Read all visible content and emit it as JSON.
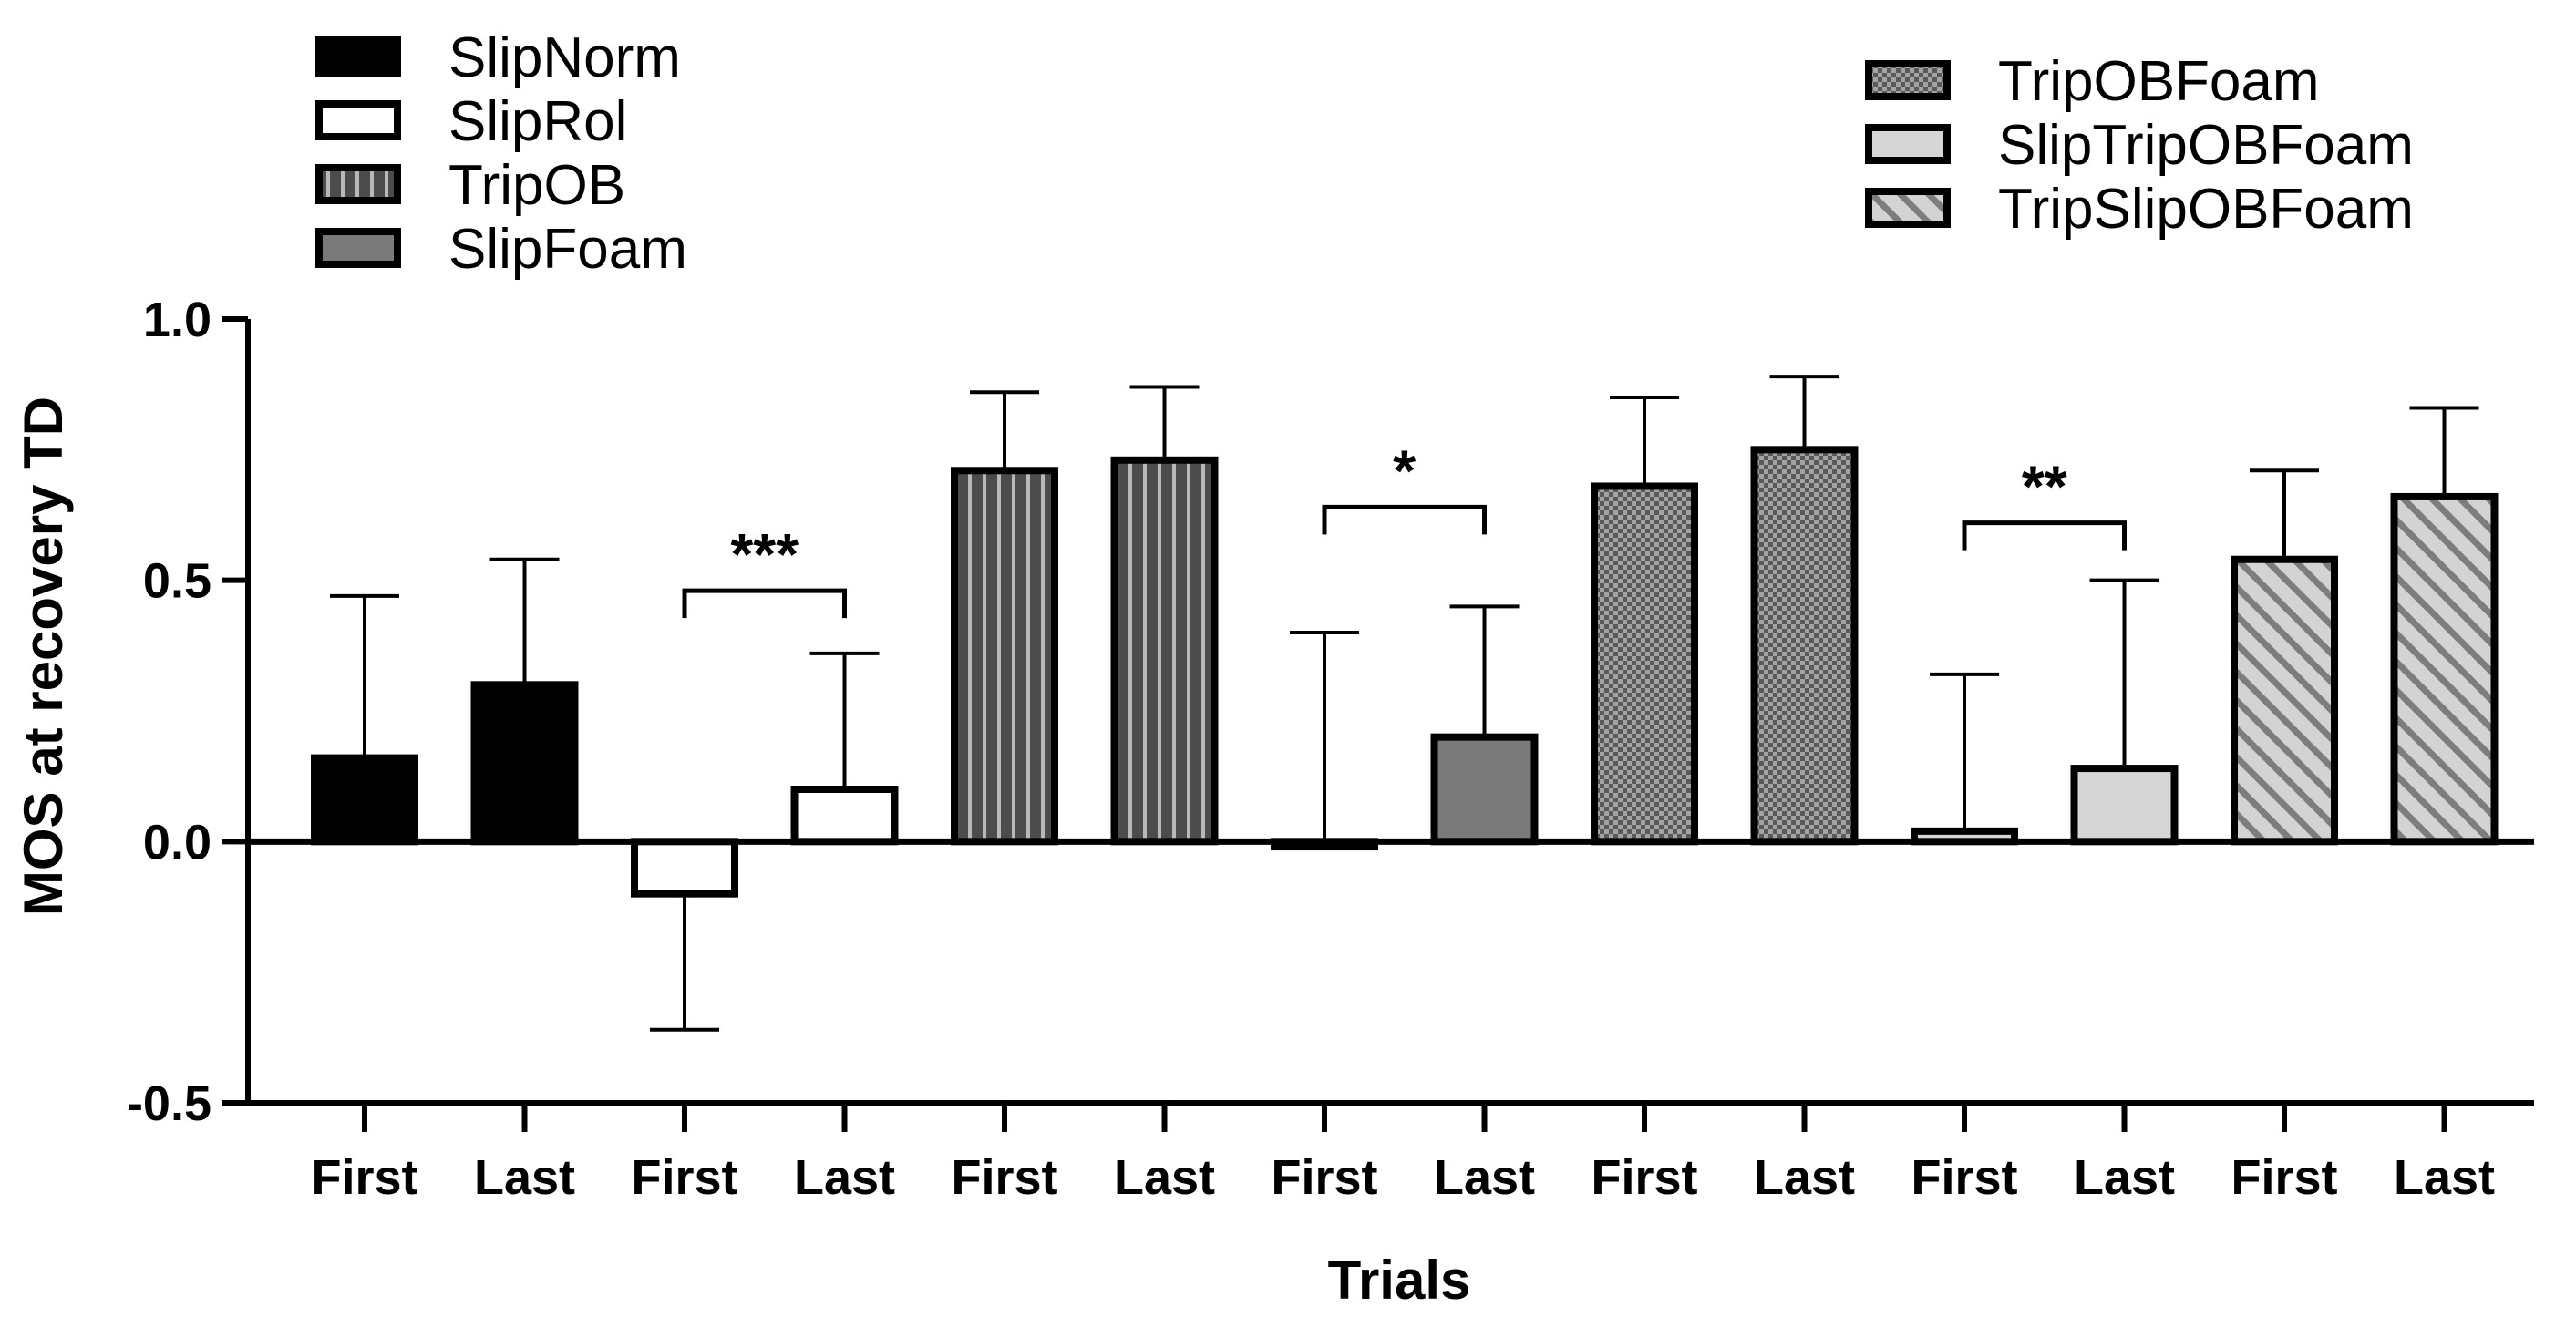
{
  "chart_data": {
    "type": "bar",
    "title": "",
    "xlabel": "Trials",
    "ylabel": "MOS at recovery TD",
    "ylim": [
      -0.5,
      1.0
    ],
    "yticks": [
      "-0.5",
      "0.0",
      "0.5",
      "1.0"
    ],
    "grid": false,
    "categories": [
      "First",
      "Last",
      "First",
      "Last",
      "First",
      "Last",
      "First",
      "Last",
      "First",
      "Last",
      "First",
      "Last",
      "First",
      "Last"
    ],
    "groups": [
      {
        "name": "SlipNorm",
        "pattern": "solid-black",
        "fill": "#000000",
        "values": [
          0.16,
          0.3
        ],
        "errors": [
          0.31,
          0.24
        ],
        "error_dir": [
          "up",
          "up"
        ]
      },
      {
        "name": "SlipRol",
        "pattern": "white",
        "fill": "#ffffff",
        "values": [
          -0.1,
          0.1
        ],
        "errors": [
          0.26,
          0.26
        ],
        "error_dir": [
          "down",
          "up"
        ]
      },
      {
        "name": "TripOB",
        "pattern": "vertical-stripes",
        "fill": "#5a5a5a",
        "values": [
          0.71,
          0.73
        ],
        "errors": [
          0.15,
          0.14
        ],
        "error_dir": [
          "up",
          "up"
        ]
      },
      {
        "name": "SlipFoam",
        "pattern": "solid-gray",
        "fill": "#7a7a7a",
        "values": [
          -0.01,
          0.2
        ],
        "errors": [
          0.41,
          0.25
        ],
        "error_dir": [
          "up",
          "up"
        ]
      },
      {
        "name": "TripOBFoam",
        "pattern": "checker",
        "fill": "#6a6a6a",
        "values": [
          0.68,
          0.75
        ],
        "errors": [
          0.17,
          0.14
        ],
        "error_dir": [
          "up",
          "up"
        ]
      },
      {
        "name": "SlipTripOBFoam",
        "pattern": "solid-lightgray",
        "fill": "#d6d6d6",
        "values": [
          0.02,
          0.14
        ],
        "errors": [
          0.3,
          0.36
        ],
        "error_dir": [
          "up",
          "up"
        ]
      },
      {
        "name": "TripSlipOBFoam",
        "pattern": "diagonal-hatch",
        "fill": "#bdbdbd",
        "values": [
          0.54,
          0.66
        ],
        "errors": [
          0.17,
          0.17
        ],
        "error_dir": [
          "up",
          "up"
        ]
      }
    ],
    "significance": [
      {
        "group": "SlipRol",
        "label": "***",
        "y": 0.48
      },
      {
        "group": "SlipFoam",
        "label": "*",
        "y": 0.64
      },
      {
        "group": "SlipTripOBFoam",
        "label": "**",
        "y": 0.61
      }
    ],
    "legend": {
      "placement": "top-left-and-top-right",
      "left_entries": [
        "SlipNorm",
        "SlipRol",
        "TripOB",
        "SlipFoam"
      ],
      "right_entries": [
        "TripOBFoam",
        "SlipTripOBFoam",
        "TripSlipOBFoam"
      ]
    }
  }
}
